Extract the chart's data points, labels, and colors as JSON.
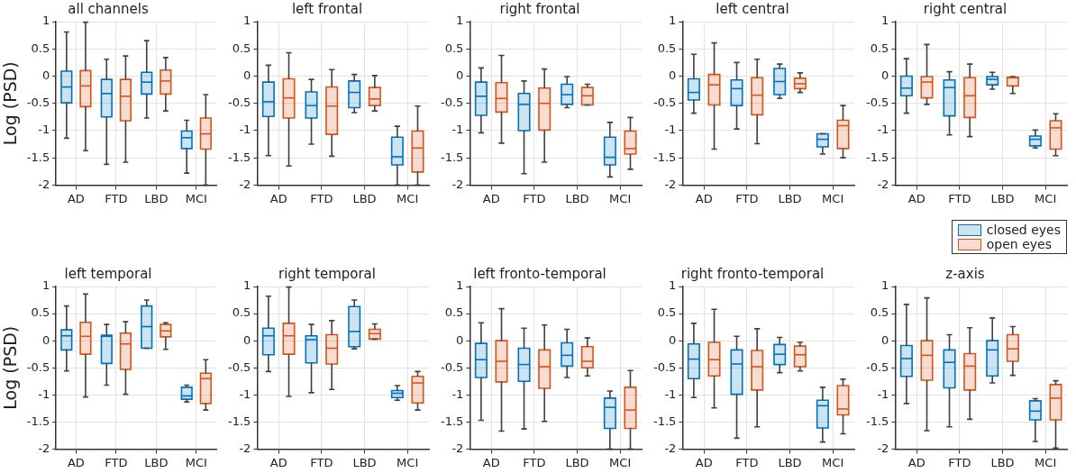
{
  "chart_data": [
    {
      "type": "box",
      "title": "all channels",
      "ylabel": "Log (PSD)",
      "categories": [
        "AD",
        "FTD",
        "LBD",
        "MCI"
      ],
      "ylim": [
        -2,
        1
      ],
      "yticks": [
        -2,
        -1.5,
        -1,
        -0.5,
        0,
        0.5,
        1
      ],
      "grid": true,
      "series": [
        {
          "color": "#0072bd",
          "boxes": [
            {
              "low": -1.14,
              "q1": -0.49,
              "median": -0.2,
              "q3": 0.09,
              "high": 0.81
            },
            {
              "low": -1.62,
              "q1": -0.75,
              "median": -0.32,
              "q3": -0.06,
              "high": 0.31
            },
            {
              "low": -0.77,
              "q1": -0.33,
              "median": -0.11,
              "q3": 0.07,
              "high": 0.65
            },
            {
              "low": -1.78,
              "q1": -1.33,
              "median": -1.13,
              "q3": -1.01,
              "high": -0.81
            }
          ]
        },
        {
          "color": "#d95319",
          "boxes": [
            {
              "low": -1.37,
              "q1": -0.56,
              "median": -0.18,
              "q3": 0.1,
              "high": 0.99
            },
            {
              "low": -1.58,
              "q1": -0.82,
              "median": -0.37,
              "q3": -0.06,
              "high": 0.37
            },
            {
              "low": -0.64,
              "q1": -0.33,
              "median": -0.09,
              "q3": 0.11,
              "high": 0.34
            },
            {
              "low": -2,
              "q1": -1.34,
              "median": -1.06,
              "q3": -0.77,
              "high": -0.34
            }
          ]
        }
      ]
    },
    {
      "type": "box",
      "title": "left frontal",
      "categories": [
        "AD",
        "FTD",
        "LBD",
        "MCI"
      ],
      "ylim": [
        -2,
        1
      ],
      "yticks": [
        -2,
        -1.5,
        -1,
        -0.5,
        0,
        0.5,
        1
      ],
      "grid": true,
      "series": [
        {
          "color": "#0072bd",
          "boxes": [
            {
              "low": -1.46,
              "q1": -0.74,
              "median": -0.47,
              "q3": -0.11,
              "high": 0.2
            },
            {
              "low": -1.25,
              "q1": -0.77,
              "median": -0.54,
              "q3": -0.29,
              "high": -0.06
            },
            {
              "low": -0.67,
              "q1": -0.58,
              "median": -0.3,
              "q3": -0.09,
              "high": 0.03
            },
            {
              "low": -2,
              "q1": -1.63,
              "median": -1.48,
              "q3": -1.12,
              "high": -0.92
            }
          ]
        },
        {
          "color": "#d95319",
          "boxes": [
            {
              "low": -1.65,
              "q1": -0.77,
              "median": -0.4,
              "q3": -0.05,
              "high": 0.43
            },
            {
              "low": -1.47,
              "q1": -1.07,
              "median": -0.55,
              "q3": -0.2,
              "high": 0.12
            },
            {
              "low": -0.64,
              "q1": -0.54,
              "median": -0.42,
              "q3": -0.21,
              "high": 0.01
            },
            {
              "low": -2,
              "q1": -1.76,
              "median": -1.32,
              "q3": -1.01,
              "high": -0.55
            }
          ]
        }
      ]
    },
    {
      "type": "box",
      "title": "right frontal",
      "categories": [
        "AD",
        "FTD",
        "LBD",
        "MCI"
      ],
      "ylim": [
        -2,
        1
      ],
      "yticks": [
        -2,
        -1.5,
        -1,
        -0.5,
        0,
        0.5,
        1
      ],
      "grid": true,
      "series": [
        {
          "color": "#0072bd",
          "boxes": [
            {
              "low": -1.04,
              "q1": -0.72,
              "median": -0.37,
              "q3": -0.11,
              "high": 0.15
            },
            {
              "low": -1.79,
              "q1": -1.0,
              "median": -0.52,
              "q3": -0.32,
              "high": -0.09
            },
            {
              "low": -0.58,
              "q1": -0.52,
              "median": -0.34,
              "q3": -0.15,
              "high": -0.01
            },
            {
              "low": -1.85,
              "q1": -1.63,
              "median": -1.49,
              "q3": -1.12,
              "high": -0.85
            }
          ]
        },
        {
          "color": "#d95319",
          "boxes": [
            {
              "low": -1.23,
              "q1": -0.66,
              "median": -0.41,
              "q3": -0.12,
              "high": 0.38
            },
            {
              "low": -1.58,
              "q1": -0.99,
              "median": -0.5,
              "q3": -0.22,
              "high": 0.13
            },
            {
              "low": -0.53,
              "q1": -0.53,
              "median": -0.36,
              "q3": -0.21,
              "high": -0.15
            },
            {
              "low": -1.71,
              "q1": -1.43,
              "median": -1.33,
              "q3": -1.01,
              "high": -0.76
            }
          ]
        }
      ]
    },
    {
      "type": "box",
      "title": "left central",
      "categories": [
        "AD",
        "FTD",
        "LBD",
        "MCI"
      ],
      "ylim": [
        -2,
        1
      ],
      "yticks": [
        -2,
        -1.5,
        -1,
        -0.5,
        0,
        0.5,
        1
      ],
      "grid": true,
      "series": [
        {
          "color": "#0072bd",
          "boxes": [
            {
              "low": -0.68,
              "q1": -0.44,
              "median": -0.3,
              "q3": -0.05,
              "high": 0.4
            },
            {
              "low": -0.97,
              "q1": -0.54,
              "median": -0.23,
              "q3": -0.07,
              "high": 0.25
            },
            {
              "low": -0.41,
              "q1": -0.34,
              "median": -0.1,
              "q3": 0.14,
              "high": 0.22
            },
            {
              "low": -1.43,
              "q1": -1.3,
              "median": -1.16,
              "q3": -1.06,
              "high": -1.06
            }
          ]
        },
        {
          "color": "#d95319",
          "boxes": [
            {
              "low": -1.34,
              "q1": -0.53,
              "median": -0.16,
              "q3": 0.03,
              "high": 0.61
            },
            {
              "low": -1.24,
              "q1": -0.71,
              "median": -0.35,
              "q3": -0.03,
              "high": 0.31
            },
            {
              "low": -0.3,
              "q1": -0.23,
              "median": -0.14,
              "q3": -0.04,
              "high": 0.06
            },
            {
              "low": -1.5,
              "q1": -1.33,
              "median": -0.91,
              "q3": -0.81,
              "high": -0.54
            }
          ]
        }
      ]
    },
    {
      "type": "box",
      "title": "right central",
      "categories": [
        "AD",
        "FTD",
        "LBD",
        "MCI"
      ],
      "ylim": [
        -2,
        1
      ],
      "yticks": [
        -2,
        -1.5,
        -1,
        -0.5,
        0,
        0.5,
        1
      ],
      "grid": true,
      "legend": "bottom",
      "series": [
        {
          "name": "closed eyes",
          "color": "#0072bd",
          "boxes": [
            {
              "low": -0.68,
              "q1": -0.36,
              "median": -0.22,
              "q3": 0.0,
              "high": 0.32
            },
            {
              "low": -1.08,
              "q1": -0.73,
              "median": -0.21,
              "q3": -0.07,
              "high": 0.08
            },
            {
              "low": -0.24,
              "q1": -0.16,
              "median": -0.06,
              "q3": -0.01,
              "high": 0.07
            },
            {
              "low": -1.32,
              "q1": -1.28,
              "median": -1.16,
              "q3": -1.1,
              "high": -0.99
            }
          ]
        },
        {
          "name": "open eyes",
          "color": "#d95319",
          "boxes": [
            {
              "low": -0.52,
              "q1": -0.4,
              "median": -0.11,
              "q3": -0.01,
              "high": 0.58
            },
            {
              "low": -1.11,
              "q1": -0.76,
              "median": -0.36,
              "q3": -0.03,
              "high": 0.22
            },
            {
              "low": -0.32,
              "q1": -0.18,
              "median": -0.03,
              "q3": -0.02,
              "high": -0.01
            },
            {
              "low": -1.46,
              "q1": -1.34,
              "median": -0.95,
              "q3": -0.82,
              "high": -0.69
            }
          ]
        }
      ]
    },
    {
      "type": "box",
      "title": "left temporal",
      "ylabel": "Log (PSD)",
      "categories": [
        "AD",
        "FTD",
        "LBD",
        "MCI"
      ],
      "ylim": [
        -2,
        1
      ],
      "yticks": [
        -2,
        -1.5,
        -1,
        -0.5,
        0,
        0.5,
        1
      ],
      "grid": true,
      "series": [
        {
          "color": "#0072bd",
          "boxes": [
            {
              "low": -0.56,
              "q1": -0.17,
              "median": 0.09,
              "q3": 0.2,
              "high": 0.64
            },
            {
              "low": -0.82,
              "q1": -0.42,
              "median": 0.08,
              "q3": 0.1,
              "high": 0.3
            },
            {
              "low": -0.14,
              "q1": -0.14,
              "median": 0.26,
              "q3": 0.64,
              "high": 0.75
            },
            {
              "low": -1.13,
              "q1": -1.08,
              "median": -1.02,
              "q3": -0.86,
              "high": -0.82
            }
          ]
        },
        {
          "color": "#d95319",
          "boxes": [
            {
              "low": -1.04,
              "q1": -0.25,
              "median": 0.08,
              "q3": 0.34,
              "high": 0.86
            },
            {
              "low": -0.99,
              "q1": -0.53,
              "median": -0.06,
              "q3": 0.14,
              "high": 0.35
            },
            {
              "low": -0.16,
              "q1": 0.07,
              "median": 0.18,
              "q3": 0.3,
              "high": 0.33
            },
            {
              "low": -1.28,
              "q1": -1.16,
              "median": -0.7,
              "q3": -0.6,
              "high": -0.35
            }
          ]
        }
      ]
    },
    {
      "type": "box",
      "title": "right temporal",
      "categories": [
        "AD",
        "FTD",
        "LBD",
        "MCI"
      ],
      "ylim": [
        -2,
        1
      ],
      "yticks": [
        -2,
        -1.5,
        -1,
        -0.5,
        0,
        0.5,
        1
      ],
      "grid": true,
      "series": [
        {
          "color": "#0072bd",
          "boxes": [
            {
              "low": -0.57,
              "q1": -0.26,
              "median": 0.09,
              "q3": 0.23,
              "high": 0.82
            },
            {
              "low": -0.96,
              "q1": -0.41,
              "median": 0.02,
              "q3": 0.09,
              "high": 0.3
            },
            {
              "low": -0.15,
              "q1": -0.11,
              "median": 0.17,
              "q3": 0.63,
              "high": 0.75
            },
            {
              "low": -1.1,
              "q1": -1.05,
              "median": -0.97,
              "q3": -0.92,
              "high": -0.83
            }
          ]
        },
        {
          "color": "#d95319",
          "boxes": [
            {
              "low": -1.03,
              "q1": -0.25,
              "median": 0.09,
              "q3": 0.32,
              "high": 0.99
            },
            {
              "low": -0.9,
              "q1": -0.43,
              "median": -0.14,
              "q3": 0.11,
              "high": 0.37
            },
            {
              "low": 0.03,
              "q1": 0.03,
              "median": 0.13,
              "q3": 0.21,
              "high": 0.31
            },
            {
              "low": -1.28,
              "q1": -1.15,
              "median": -0.78,
              "q3": -0.66,
              "high": -0.57
            }
          ]
        }
      ]
    },
    {
      "type": "box",
      "title": "left fronto-temporal",
      "categories": [
        "AD",
        "FTD",
        "LBD",
        "MCI"
      ],
      "ylim": [
        -2,
        1
      ],
      "yticks": [
        -2,
        -1.5,
        -1,
        -0.5,
        0,
        0.5,
        1
      ],
      "grid": true,
      "series": [
        {
          "color": "#0072bd",
          "boxes": [
            {
              "low": -1.47,
              "q1": -0.68,
              "median": -0.35,
              "q3": -0.05,
              "high": 0.33
            },
            {
              "low": -1.63,
              "q1": -0.75,
              "median": -0.44,
              "q3": -0.14,
              "high": 0.23
            },
            {
              "low": -0.68,
              "q1": -0.47,
              "median": -0.27,
              "q3": -0.04,
              "high": 0.21
            },
            {
              "low": -2,
              "q1": -1.62,
              "median": -1.23,
              "q3": -1.06,
              "high": -0.93
            }
          ]
        },
        {
          "color": "#d95319",
          "boxes": [
            {
              "low": -1.67,
              "q1": -0.76,
              "median": -0.38,
              "q3": 0.0,
              "high": 0.59
            },
            {
              "low": -1.49,
              "q1": -0.88,
              "median": -0.48,
              "q3": -0.17,
              "high": 0.29
            },
            {
              "low": -0.65,
              "q1": -0.5,
              "median": -0.38,
              "q3": -0.11,
              "high": 0.05
            },
            {
              "low": -2,
              "q1": -1.62,
              "median": -1.28,
              "q3": -0.86,
              "high": -0.55
            }
          ]
        }
      ]
    },
    {
      "type": "box",
      "title": "right fronto-temporal",
      "categories": [
        "AD",
        "FTD",
        "LBD",
        "MCI"
      ],
      "ylim": [
        -2,
        1
      ],
      "yticks": [
        -2,
        -1.5,
        -1,
        -0.5,
        0,
        0.5,
        1
      ],
      "grid": true,
      "series": [
        {
          "color": "#0072bd",
          "boxes": [
            {
              "low": -1.05,
              "q1": -0.7,
              "median": -0.34,
              "q3": -0.06,
              "high": 0.32
            },
            {
              "low": -1.8,
              "q1": -0.99,
              "median": -0.43,
              "q3": -0.17,
              "high": 0.08
            },
            {
              "low": -0.59,
              "q1": -0.44,
              "median": -0.25,
              "q3": -0.07,
              "high": 0.06
            },
            {
              "low": -1.87,
              "q1": -1.61,
              "median": -1.2,
              "q3": -1.1,
              "high": -0.86
            }
          ]
        },
        {
          "color": "#d95319",
          "boxes": [
            {
              "low": -1.24,
              "q1": -0.65,
              "median": -0.35,
              "q3": -0.03,
              "high": 0.58
            },
            {
              "low": -1.59,
              "q1": -0.91,
              "median": -0.48,
              "q3": -0.18,
              "high": 0.22
            },
            {
              "low": -0.56,
              "q1": -0.48,
              "median": -0.26,
              "q3": -0.1,
              "high": -0.03
            },
            {
              "low": -1.72,
              "q1": -1.37,
              "median": -1.26,
              "q3": -0.83,
              "high": -0.71
            }
          ]
        }
      ]
    },
    {
      "type": "box",
      "title": "z-axis",
      "categories": [
        "AD",
        "FTD",
        "LBD",
        "MCI"
      ],
      "ylim": [
        -2,
        1
      ],
      "yticks": [
        -2,
        -1.5,
        -1,
        -0.5,
        0,
        0.5,
        1
      ],
      "grid": true,
      "series": [
        {
          "color": "#0072bd",
          "boxes": [
            {
              "low": -1.16,
              "q1": -0.66,
              "median": -0.33,
              "q3": -0.09,
              "high": 0.67
            },
            {
              "low": -1.59,
              "q1": -0.87,
              "median": -0.4,
              "q3": -0.17,
              "high": 0.11
            },
            {
              "low": -0.78,
              "q1": -0.65,
              "median": -0.17,
              "q3": 0.0,
              "high": 0.42
            },
            {
              "low": -1.86,
              "q1": -1.46,
              "median": -1.3,
              "q3": -1.11,
              "high": -1.07
            }
          ]
        },
        {
          "color": "#d95319",
          "boxes": [
            {
              "low": -1.66,
              "q1": -0.73,
              "median": -0.27,
              "q3": 0.0,
              "high": 0.79
            },
            {
              "low": -1.45,
              "q1": -0.91,
              "median": -0.47,
              "q3": -0.24,
              "high": 0.24
            },
            {
              "low": -0.64,
              "q1": -0.38,
              "median": -0.15,
              "q3": 0.11,
              "high": 0.26
            },
            {
              "low": -1.98,
              "q1": -1.46,
              "median": -1.06,
              "q3": -0.81,
              "high": -0.74
            }
          ]
        }
      ]
    }
  ]
}
